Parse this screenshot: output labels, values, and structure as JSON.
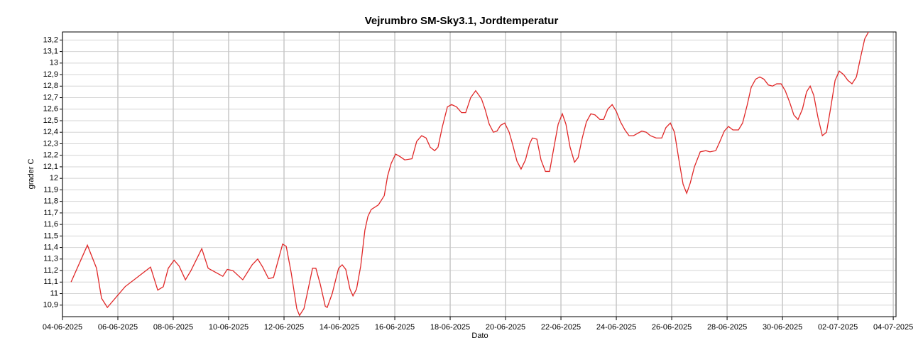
{
  "chart_data": {
    "type": "line",
    "title": "Vejrumbro SM-Sky3.1, Jordtemperatur",
    "x_label": "Dato",
    "y_label": "grader C",
    "xlim": [
      0,
      30.1
    ],
    "ylim": [
      10.8,
      13.27
    ],
    "grid": true,
    "xticks": [
      {
        "value": 0,
        "label": "04-06-2025"
      },
      {
        "value": 2,
        "label": "06-06-2025"
      },
      {
        "value": 4,
        "label": "08-06-2025"
      },
      {
        "value": 6,
        "label": "10-06-2025"
      },
      {
        "value": 8,
        "label": "12-06-2025"
      },
      {
        "value": 10,
        "label": "14-06-2025"
      },
      {
        "value": 12,
        "label": "16-06-2025"
      },
      {
        "value": 14,
        "label": "18-06-2025"
      },
      {
        "value": 16,
        "label": "20-06-2025"
      },
      {
        "value": 18,
        "label": "22-06-2025"
      },
      {
        "value": 20,
        "label": "24-06-2025"
      },
      {
        "value": 22,
        "label": "26-06-2025"
      },
      {
        "value": 24,
        "label": "28-06-2025"
      },
      {
        "value": 26,
        "label": "30-06-2025"
      },
      {
        "value": 28,
        "label": "02-07-2025"
      },
      {
        "value": 30,
        "label": "04-07-2025"
      }
    ],
    "yticks": [
      {
        "value": 10.9,
        "label": "10,9"
      },
      11,
      {
        "value": 11.1,
        "label": "11,1"
      },
      {
        "value": 11.2,
        "label": "11,2"
      },
      {
        "value": 11.3,
        "label": "11,3"
      },
      {
        "value": 11.4,
        "label": "11,4"
      },
      {
        "value": 11.5,
        "label": "11,5"
      },
      {
        "value": 11.6,
        "label": "11,6"
      },
      {
        "value": 11.7,
        "label": "11,7"
      },
      {
        "value": 11.8,
        "label": "11,8"
      },
      {
        "value": 11.9,
        "label": "11,9"
      },
      12,
      {
        "value": 12.1,
        "label": "12,1"
      },
      {
        "value": 12.2,
        "label": "12,2"
      },
      {
        "value": 12.3,
        "label": "12,3"
      },
      {
        "value": 12.4,
        "label": "12,4"
      },
      {
        "value": 12.5,
        "label": "12,5"
      },
      {
        "value": 12.6,
        "label": "12,6"
      },
      {
        "value": 12.7,
        "label": "12,7"
      },
      {
        "value": 12.8,
        "label": "12,8"
      },
      {
        "value": 12.9,
        "label": "12,9"
      },
      13,
      {
        "value": 13.1,
        "label": "13,1"
      },
      {
        "value": 13.2,
        "label": "13,2"
      }
    ],
    "x": [
      0.31,
      0.9,
      1.23,
      1.41,
      1.62,
      2.26,
      3.18,
      3.44,
      3.64,
      3.82,
      4.03,
      4.21,
      4.44,
      4.64,
      5.03,
      5.26,
      5.79,
      5.95,
      6.15,
      6.51,
      6.85,
      7.05,
      7.23,
      7.44,
      7.62,
      7.95,
      8.08,
      8.26,
      8.46,
      8.56,
      8.72,
      8.82,
      9.03,
      9.15,
      9.31,
      9.49,
      9.56,
      9.74,
      9.97,
      10.1,
      10.23,
      10.38,
      10.49,
      10.62,
      10.77,
      10.92,
      11.03,
      11.15,
      11.41,
      11.62,
      11.74,
      11.87,
      12.03,
      12.18,
      12.36,
      12.62,
      12.79,
      12.97,
      13.13,
      13.28,
      13.44,
      13.56,
      13.72,
      13.9,
      14.05,
      14.23,
      14.41,
      14.56,
      14.74,
      14.92,
      15.13,
      15.26,
      15.41,
      15.56,
      15.69,
      15.82,
      15.97,
      16.13,
      16.26,
      16.41,
      16.56,
      16.72,
      16.87,
      16.97,
      17.13,
      17.28,
      17.44,
      17.59,
      17.74,
      17.9,
      18.05,
      18.18,
      18.33,
      18.49,
      18.62,
      18.77,
      18.92,
      19.08,
      19.23,
      19.41,
      19.54,
      19.69,
      19.85,
      20.0,
      20.15,
      20.31,
      20.46,
      20.62,
      20.77,
      20.92,
      21.08,
      21.23,
      21.44,
      21.64,
      21.79,
      21.95,
      22.1,
      22.26,
      22.41,
      22.54,
      22.67,
      22.82,
      23.03,
      23.23,
      23.38,
      23.59,
      23.74,
      23.9,
      24.05,
      24.21,
      24.41,
      24.56,
      24.72,
      24.87,
      25.03,
      25.18,
      25.33,
      25.49,
      25.64,
      25.79,
      25.95,
      26.1,
      26.26,
      26.41,
      26.56,
      26.72,
      26.87,
      27.0,
      27.13,
      27.28,
      27.44,
      27.59,
      27.74,
      27.9,
      28.05,
      28.21,
      28.36,
      28.51,
      28.67,
      28.82,
      28.97,
      29.13
    ],
    "series": [
      {
        "color": "#e02828",
        "values": [
          11.1,
          11.42,
          11.22,
          10.96,
          10.88,
          11.06,
          11.23,
          11.03,
          11.06,
          11.22,
          11.29,
          11.24,
          11.12,
          11.2,
          11.39,
          11.22,
          11.15,
          11.21,
          11.2,
          11.12,
          11.25,
          11.3,
          11.23,
          11.13,
          11.14,
          11.43,
          11.41,
          11.18,
          10.87,
          10.81,
          10.87,
          10.98,
          11.22,
          11.22,
          11.08,
          10.89,
          10.88,
          11.0,
          11.22,
          11.25,
          11.21,
          11.04,
          10.98,
          11.04,
          11.24,
          11.55,
          11.67,
          11.73,
          11.77,
          11.85,
          12.02,
          12.13,
          12.21,
          12.19,
          12.16,
          12.17,
          12.32,
          12.37,
          12.35,
          12.27,
          12.24,
          12.27,
          12.45,
          12.62,
          12.64,
          12.62,
          12.57,
          12.57,
          12.7,
          12.76,
          12.69,
          12.6,
          12.47,
          12.4,
          12.41,
          12.46,
          12.48,
          12.4,
          12.29,
          12.15,
          12.08,
          12.16,
          12.3,
          12.35,
          12.34,
          12.16,
          12.06,
          12.06,
          12.26,
          12.47,
          12.56,
          12.47,
          12.27,
          12.14,
          12.18,
          12.35,
          12.49,
          12.56,
          12.55,
          12.51,
          12.51,
          12.6,
          12.64,
          12.58,
          12.49,
          12.42,
          12.37,
          12.37,
          12.39,
          12.41,
          12.4,
          12.37,
          12.35,
          12.35,
          12.44,
          12.48,
          12.4,
          12.16,
          11.95,
          11.87,
          11.96,
          12.1,
          12.23,
          12.24,
          12.23,
          12.24,
          12.32,
          12.41,
          12.45,
          12.42,
          12.42,
          12.48,
          12.63,
          12.79,
          12.86,
          12.88,
          12.86,
          12.81,
          12.8,
          12.82,
          12.82,
          12.76,
          12.66,
          12.55,
          12.51,
          12.6,
          12.75,
          12.8,
          12.72,
          12.53,
          12.37,
          12.4,
          12.61,
          12.85,
          12.93,
          12.9,
          12.85,
          12.82,
          12.88,
          13.05,
          13.21,
          13.28
        ]
      }
    ]
  }
}
